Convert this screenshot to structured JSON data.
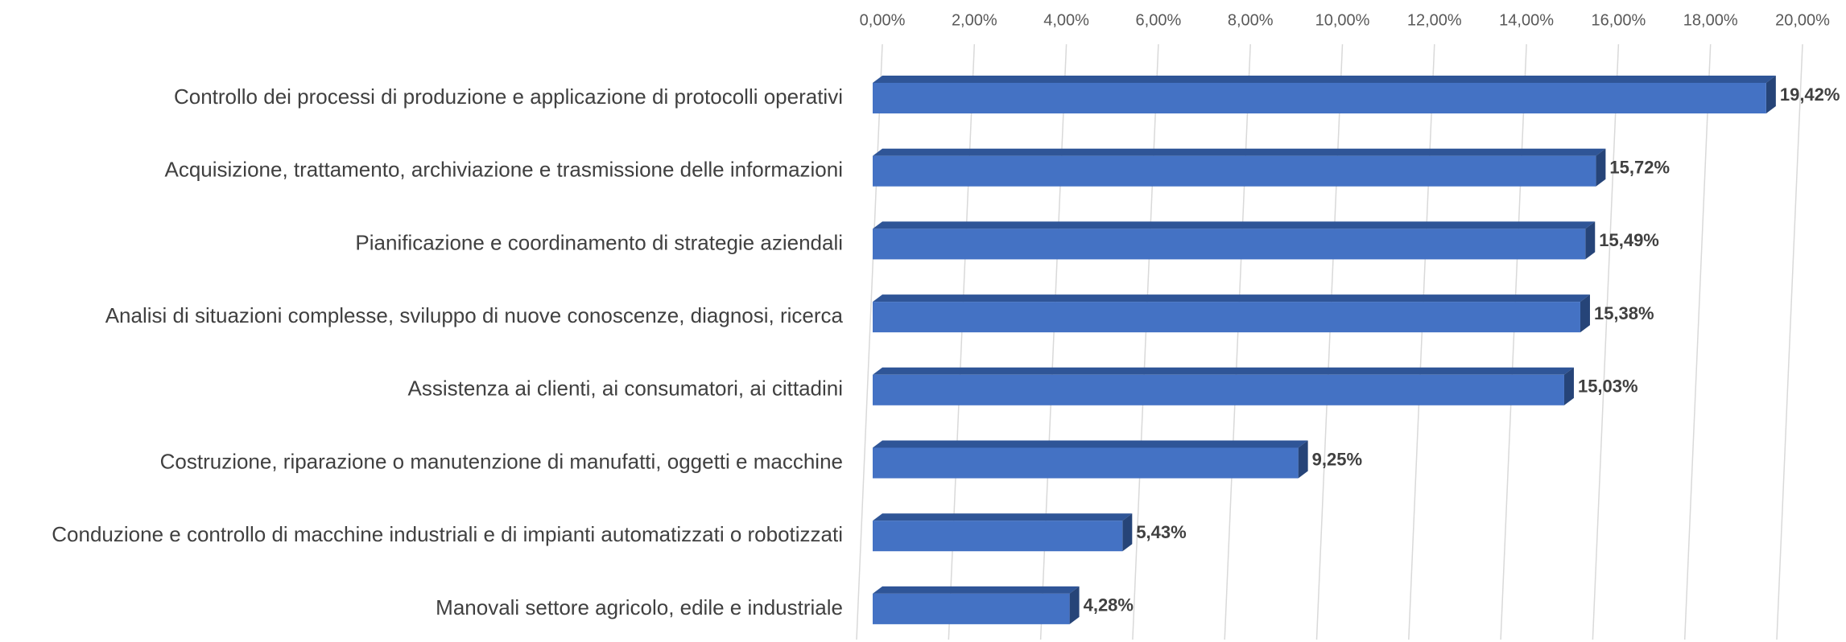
{
  "chart_data": {
    "type": "bar",
    "orientation": "horizontal",
    "categories": [
      "Controllo dei processi di produzione e applicazione di protocolli operativi",
      "Acquisizione, trattamento, archiviazione e trasmissione delle informazioni",
      "Pianificazione e coordinamento di strategie aziendali",
      "Analisi di situazioni complesse, sviluppo di nuove conoscenze, diagnosi, ricerca",
      "Assistenza ai clienti, ai consumatori, ai cittadini",
      "Costruzione, riparazione o manutenzione di manufatti, oggetti e macchine",
      "Conduzione e controllo di macchine industriali e di impianti automatizzati o robotizzati",
      "Manovali settore agricolo, edile e industriale"
    ],
    "values": [
      19.42,
      15.72,
      15.49,
      15.38,
      15.03,
      9.25,
      5.43,
      4.28
    ],
    "value_labels": [
      "19,42%",
      "15,72%",
      "15,49%",
      "15,38%",
      "15,03%",
      "9,25%",
      "5,43%",
      "4,28%"
    ],
    "color": "#4472c4",
    "xlim": [
      0,
      20
    ],
    "xticks": [
      {
        "value": 0,
        "label": "0,00%"
      },
      {
        "value": 2,
        "label": "2,00%"
      },
      {
        "value": 4,
        "label": "4,00%"
      },
      {
        "value": 6,
        "label": "6,00%"
      },
      {
        "value": 8,
        "label": "8,00%"
      },
      {
        "value": 10,
        "label": "10,00%"
      },
      {
        "value": 12,
        "label": "12,00%"
      },
      {
        "value": 14,
        "label": "14,00%"
      },
      {
        "value": 16,
        "label": "16,00%"
      },
      {
        "value": 18,
        "label": "18,00%"
      },
      {
        "value": 20,
        "label": "20,00%"
      }
    ],
    "grid": true
  }
}
